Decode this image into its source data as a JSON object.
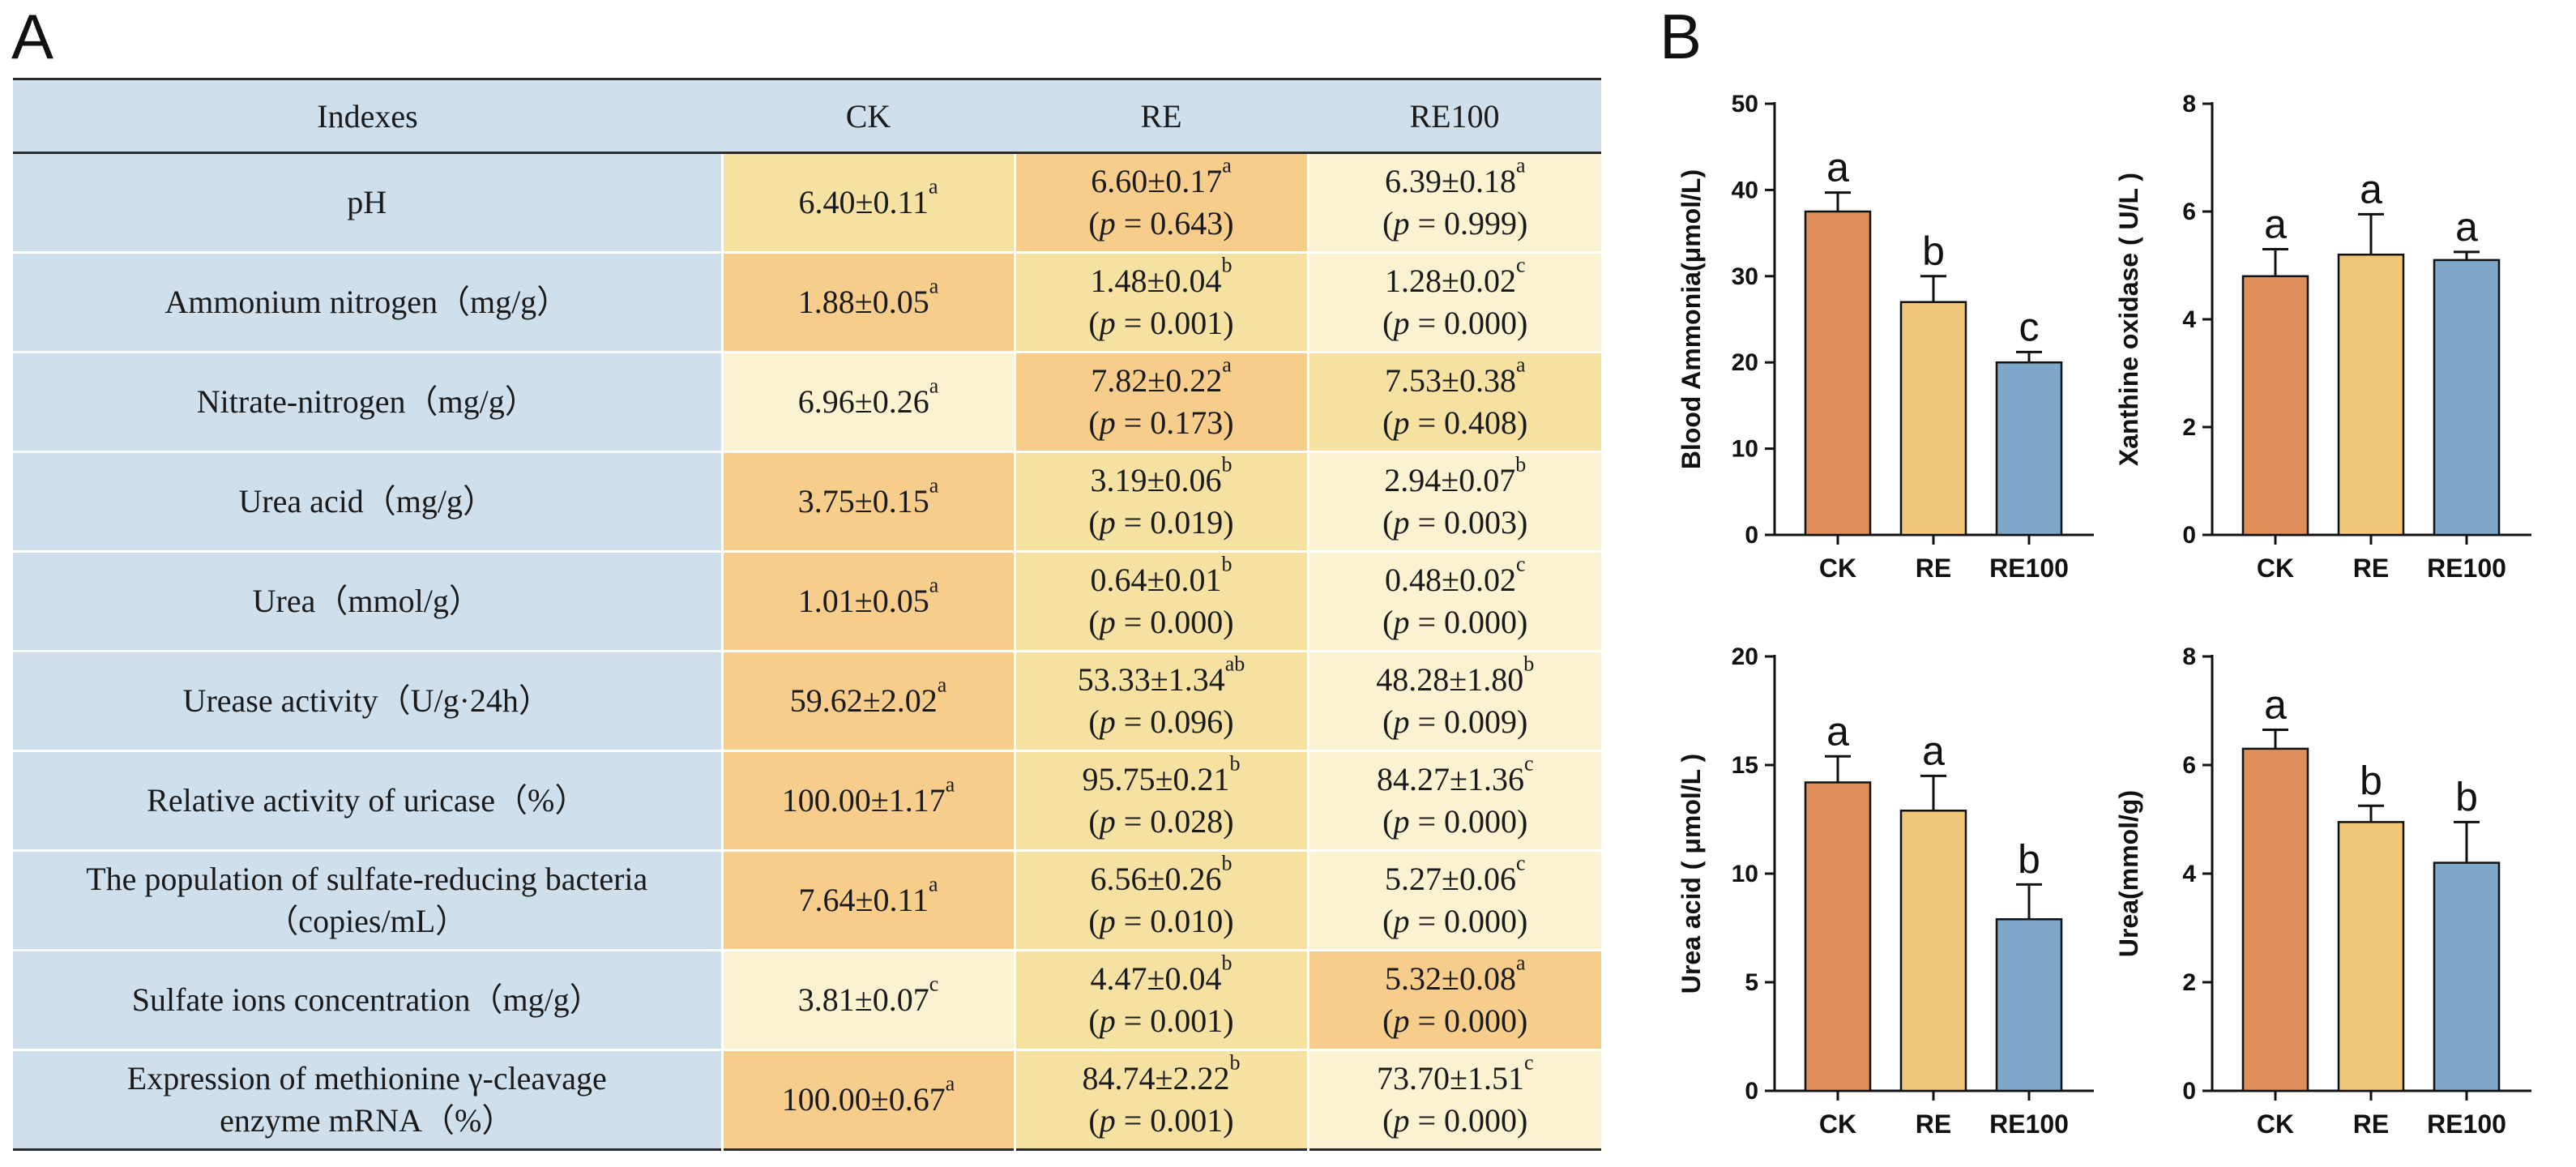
{
  "panel_labels": {
    "a": "A",
    "b": "B"
  },
  "table": {
    "headers": [
      "Indexes",
      "CK",
      "RE",
      "RE100"
    ],
    "rows": [
      {
        "label": "pH",
        "label_line2": "",
        "ck": {
          "value": "6.40±0.11",
          "sup": "a",
          "shade": "mid"
        },
        "re": {
          "value": "6.60±0.17",
          "sup": "a",
          "p": "0.643",
          "shade": "dark"
        },
        "re100": {
          "value": "6.39±0.18",
          "sup": "a",
          "p": "0.999",
          "shade": "light"
        }
      },
      {
        "label": "Ammonium nitrogen（mg/g）",
        "label_line2": "",
        "ck": {
          "value": "1.88±0.05",
          "sup": "a",
          "shade": "dark"
        },
        "re": {
          "value": "1.48±0.04",
          "sup": "b",
          "p": "0.001",
          "shade": "mid"
        },
        "re100": {
          "value": "1.28±0.02",
          "sup": "c",
          "p": "0.000",
          "shade": "light"
        }
      },
      {
        "label": "Nitrate-nitrogen（mg/g）",
        "label_line2": "",
        "ck": {
          "value": "6.96±0.26",
          "sup": "a",
          "shade": "light"
        },
        "re": {
          "value": "7.82±0.22",
          "sup": "a",
          "p": "0.173",
          "shade": "dark"
        },
        "re100": {
          "value": "7.53±0.38",
          "sup": "a",
          "p": "0.408",
          "shade": "mid"
        }
      },
      {
        "label": "Urea acid（mg/g）",
        "label_line2": "",
        "ck": {
          "value": "3.75±0.15",
          "sup": "a",
          "shade": "dark"
        },
        "re": {
          "value": "3.19±0.06",
          "sup": "b",
          "p": "0.019",
          "shade": "mid"
        },
        "re100": {
          "value": "2.94±0.07",
          "sup": "b",
          "p": "0.003",
          "shade": "light"
        }
      },
      {
        "label": "Urea（mmol/g）",
        "label_line2": "",
        "ck": {
          "value": "1.01±0.05",
          "sup": "a",
          "shade": "dark"
        },
        "re": {
          "value": "0.64±0.01",
          "sup": "b",
          "p": "0.000",
          "shade": "mid"
        },
        "re100": {
          "value": "0.48±0.02",
          "sup": "c",
          "p": "0.000",
          "shade": "light"
        }
      },
      {
        "label": "Urease activity（U/g·24h）",
        "label_line2": "",
        "ck": {
          "value": "59.62±2.02",
          "sup": "a",
          "shade": "dark"
        },
        "re": {
          "value": "53.33±1.34",
          "sup": "ab",
          "p": "0.096",
          "shade": "mid"
        },
        "re100": {
          "value": "48.28±1.80",
          "sup": "b",
          "p": "0.009",
          "shade": "light"
        }
      },
      {
        "label": "Relative activity of uricase（%）",
        "label_line2": "",
        "ck": {
          "value": "100.00±1.17",
          "sup": "a",
          "shade": "dark"
        },
        "re": {
          "value": "95.75±0.21",
          "sup": "b",
          "p": "0.028",
          "shade": "mid"
        },
        "re100": {
          "value": "84.27±1.36",
          "sup": "c",
          "p": "0.000",
          "shade": "light"
        }
      },
      {
        "label": "The population of sulfate-reducing bacteria",
        "label_line2": "（copies/mL）",
        "ck": {
          "value": "7.64±0.11",
          "sup": "a",
          "shade": "dark"
        },
        "re": {
          "value": "6.56±0.26",
          "sup": "b",
          "p": "0.010",
          "shade": "mid"
        },
        "re100": {
          "value": "5.27±0.06",
          "sup": "c",
          "p": "0.000",
          "shade": "light"
        }
      },
      {
        "label": "Sulfate ions concentration（mg/g）",
        "label_line2": "",
        "ck": {
          "value": "3.81±0.07",
          "sup": "c",
          "shade": "light"
        },
        "re": {
          "value": "4.47±0.04",
          "sup": "b",
          "p": "0.001",
          "shade": "mid"
        },
        "re100": {
          "value": "5.32±0.08",
          "sup": "a",
          "p": "0.000",
          "shade": "dark"
        }
      },
      {
        "label": "Expression of methionine γ-cleavage",
        "label_line2": "enzyme mRNA（%）",
        "ck": {
          "value": "100.00±0.67",
          "sup": "a",
          "shade": "dark"
        },
        "re": {
          "value": "84.74±2.22",
          "sup": "b",
          "p": "0.001",
          "shade": "mid"
        },
        "re100": {
          "value": "73.70±1.51",
          "sup": "c",
          "p": "0.000",
          "shade": "light"
        }
      }
    ]
  },
  "colors": {
    "shade_dark": "#f7cd8c",
    "shade_mid": "#f5e2a2",
    "shade_light": "#faf2d0",
    "header_bg": "#cfe0ec",
    "bar_ck": "#e08e5a",
    "bar_re": "#f2c679",
    "bar_re100": "#7ea6c8"
  },
  "chart_data": [
    {
      "type": "bar",
      "ylabel": "Blood Ammonia(μmol/L)",
      "categories": [
        "CK",
        "RE",
        "RE100"
      ],
      "values": [
        37.5,
        27.0,
        20.0
      ],
      "errors": [
        2.2,
        3.0,
        1.2
      ],
      "significance": [
        "a",
        "b",
        "c"
      ],
      "ylim": [
        0,
        50
      ],
      "yticks": [
        0,
        10,
        20,
        30,
        40,
        50
      ]
    },
    {
      "type": "bar",
      "ylabel": "Xanthine oxidase ( U/L )",
      "categories": [
        "CK",
        "RE",
        "RE100"
      ],
      "values": [
        4.8,
        5.2,
        5.1
      ],
      "errors": [
        0.5,
        0.75,
        0.15
      ],
      "significance": [
        "a",
        "a",
        "a"
      ],
      "ylim": [
        0,
        8
      ],
      "yticks": [
        0,
        2,
        4,
        6,
        8
      ]
    },
    {
      "type": "bar",
      "ylabel": "Urea acid ( μmol/L )",
      "categories": [
        "CK",
        "RE",
        "RE100"
      ],
      "values": [
        14.2,
        12.9,
        7.9
      ],
      "errors": [
        1.2,
        1.6,
        1.6
      ],
      "significance": [
        "a",
        "a",
        "b"
      ],
      "ylim": [
        0,
        20
      ],
      "yticks": [
        0,
        5,
        10,
        15,
        20
      ]
    },
    {
      "type": "bar",
      "ylabel": "Urea(mmol/g)",
      "categories": [
        "CK",
        "RE",
        "RE100"
      ],
      "values": [
        6.3,
        4.95,
        4.2
      ],
      "errors": [
        0.35,
        0.3,
        0.75
      ],
      "significance": [
        "a",
        "b",
        "b"
      ],
      "ylim": [
        0,
        8
      ],
      "yticks": [
        0,
        2,
        4,
        6,
        8
      ]
    }
  ]
}
